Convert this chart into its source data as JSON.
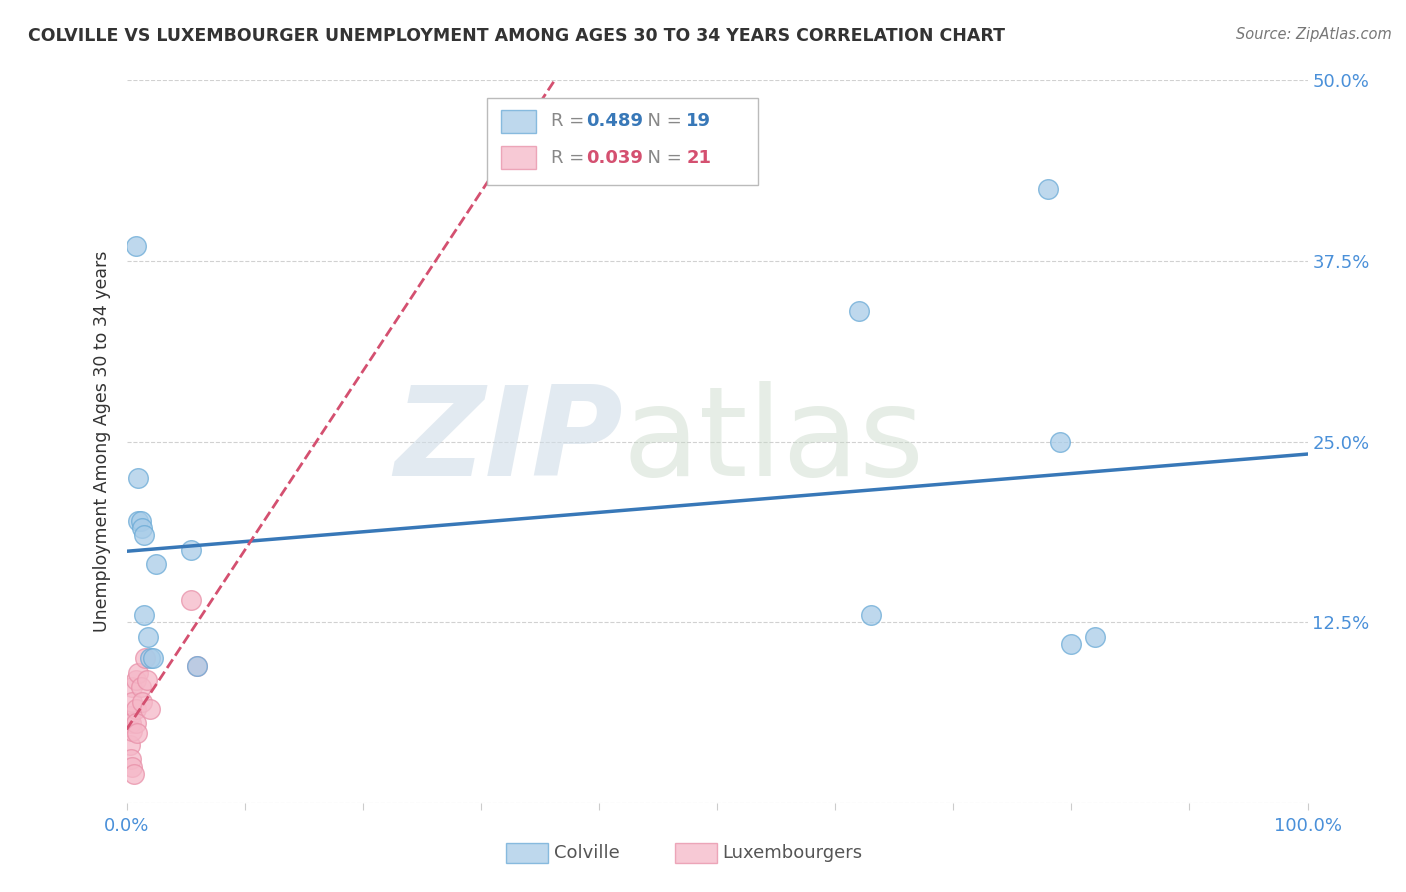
{
  "title": "COLVILLE VS LUXEMBOURGER UNEMPLOYMENT AMONG AGES 30 TO 34 YEARS CORRELATION CHART",
  "source": "Source: ZipAtlas.com",
  "ylabel": "Unemployment Among Ages 30 to 34 years",
  "colville_x": [
    0.008,
    0.01,
    0.01,
    0.012,
    0.013,
    0.015,
    0.015,
    0.018,
    0.02,
    0.022,
    0.025,
    0.055,
    0.06,
    0.62,
    0.63,
    0.78,
    0.79,
    0.8,
    0.82
  ],
  "colville_y": [
    0.385,
    0.225,
    0.195,
    0.195,
    0.19,
    0.185,
    0.13,
    0.115,
    0.1,
    0.1,
    0.165,
    0.175,
    0.095,
    0.34,
    0.13,
    0.425,
    0.25,
    0.11,
    0.115
  ],
  "luxembourger_x": [
    0.003,
    0.003,
    0.004,
    0.004,
    0.005,
    0.005,
    0.005,
    0.005,
    0.006,
    0.008,
    0.008,
    0.008,
    0.009,
    0.01,
    0.012,
    0.013,
    0.016,
    0.017,
    0.02,
    0.055,
    0.06
  ],
  "luxembourger_y": [
    0.06,
    0.04,
    0.055,
    0.03,
    0.08,
    0.07,
    0.05,
    0.025,
    0.02,
    0.085,
    0.065,
    0.055,
    0.048,
    0.09,
    0.08,
    0.07,
    0.1,
    0.085,
    0.065,
    0.14,
    0.095
  ],
  "colville_R": 0.489,
  "colville_N": 19,
  "luxembourger_R": 0.039,
  "luxembourger_N": 21,
  "colville_fill_color": "#a8cce8",
  "colville_edge_color": "#6aaad6",
  "colville_line_color": "#3878b8",
  "luxembourger_fill_color": "#f5b8c8",
  "luxembourger_edge_color": "#e890a8",
  "luxembourger_line_color": "#d45070",
  "xlim": [
    0.0,
    1.0
  ],
  "ylim": [
    0.0,
    0.5
  ],
  "xticks": [
    0.0,
    0.1,
    0.2,
    0.3,
    0.4,
    0.5,
    0.6,
    0.7,
    0.8,
    0.9,
    1.0
  ],
  "yticks": [
    0.0,
    0.125,
    0.25,
    0.375,
    0.5
  ],
  "right_ytick_labels": [
    "",
    "12.5%",
    "25.0%",
    "37.5%",
    "50.0%"
  ],
  "xtick_labels_left": "0.0%",
  "xtick_labels_right": "100.0%",
  "background_color": "#ffffff",
  "grid_color": "#cccccc",
  "tick_label_color": "#4a90d9",
  "watermark_zip": "ZIP",
  "watermark_atlas": "atlas"
}
